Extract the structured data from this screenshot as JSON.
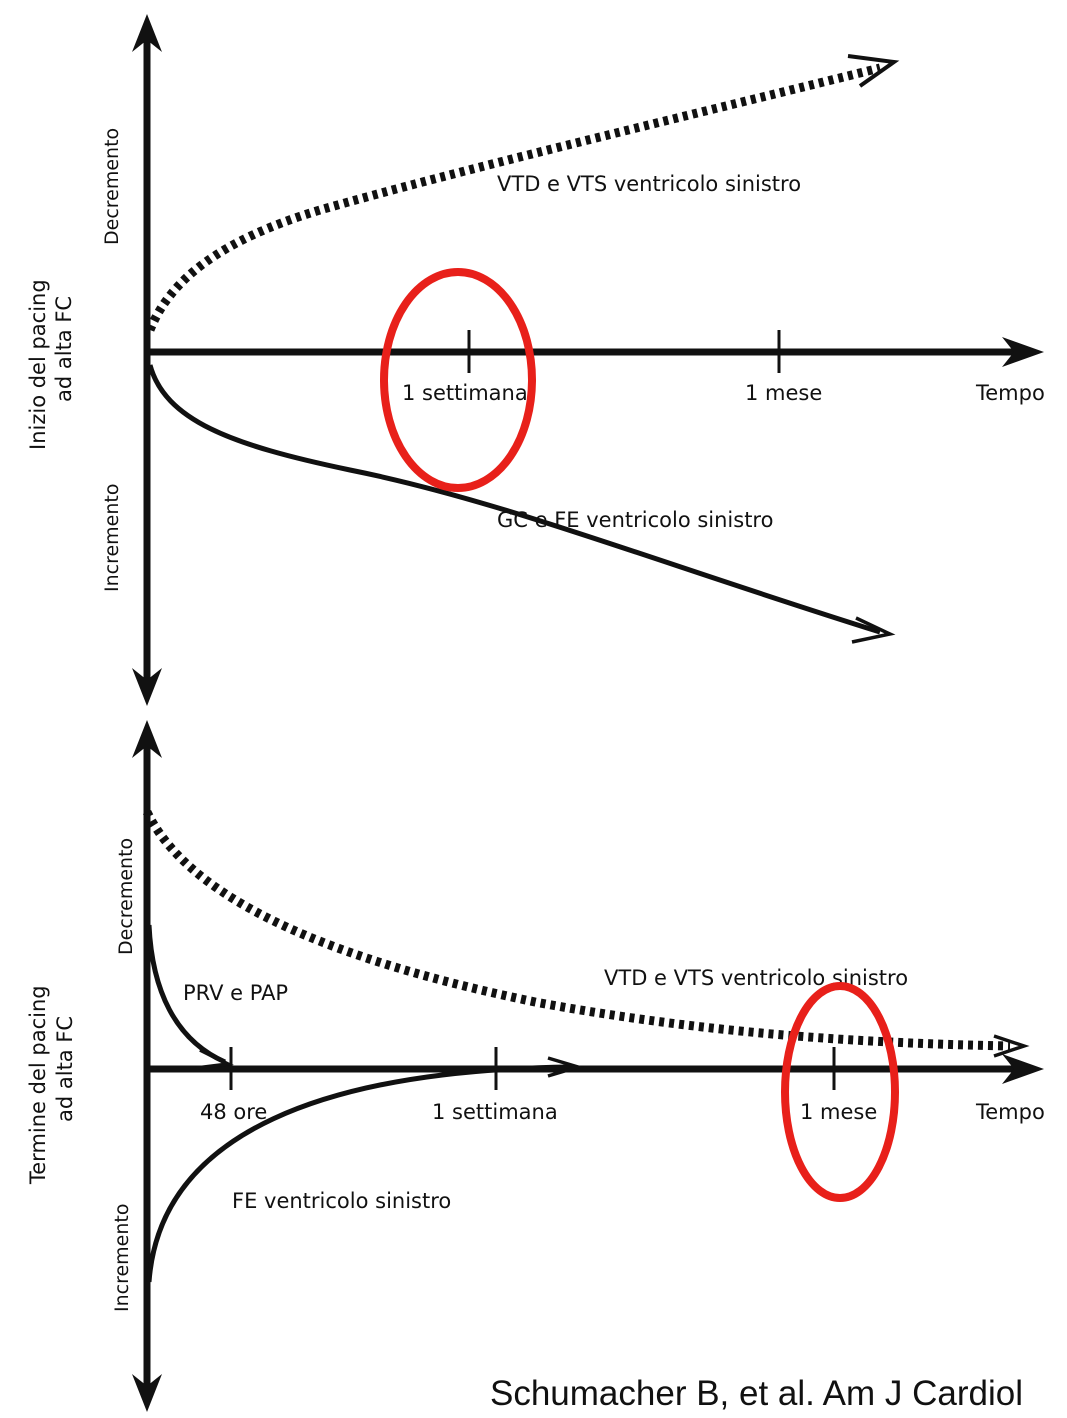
{
  "top_panel": {
    "side_label_line1": "Inizio del pacing",
    "side_label_line2": "ad alta FC",
    "y_up_label": "Decremento",
    "y_down_label": "Incremento",
    "x_label": "Tempo",
    "ticks": [
      "1 settimana",
      "1 mese"
    ],
    "curve_dotted_label": "VTD e VTS ventricolo sinistro",
    "curve_solid_label": "GC e FE ventricolo sinistro"
  },
  "bottom_panel": {
    "side_label_line1": "Termine del pacing",
    "side_label_line2": "ad alta FC",
    "y_up_label": "Decremento",
    "y_down_label": "Incremento",
    "x_label": "Tempo",
    "ticks": [
      "48 ore",
      "1 settimana",
      "1 mese"
    ],
    "curve_dotted_label": "VTD e VTS ventricolo sinistro",
    "curve_prv_label": "PRV e PAP",
    "curve_fe_label": "FE ventricolo sinistro"
  },
  "highlight_color": "#e8201a",
  "citation": "Schumacher B, et al. Am J Cardiol"
}
